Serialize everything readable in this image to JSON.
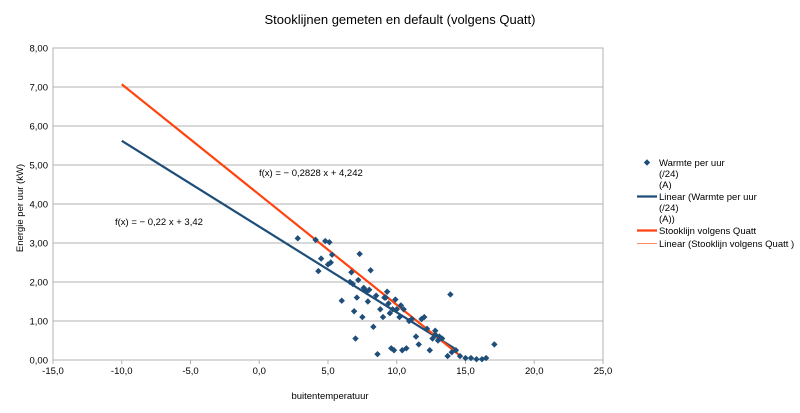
{
  "chart_data": {
    "type": "scatter",
    "title": "Stooklijnen gemeten en default (volgens Quatt)",
    "xlabel": "buitentemperatuur",
    "ylabel": "Energie per uur (kW)",
    "xlim": [
      -15,
      25
    ],
    "ylim": [
      0,
      8
    ],
    "xticks": [
      "-15,0",
      "-10,0",
      "-5,0",
      "0,0",
      "5,0",
      "10,0",
      "15,0",
      "20,0",
      "25,0"
    ],
    "yticks": [
      "0,00",
      "1,00",
      "2,00",
      "3,00",
      "4,00",
      "5,00",
      "6,00",
      "7,00",
      "8,00"
    ],
    "grid": true,
    "legend_position": "right",
    "legend": [
      "Warmte per uur\n(/24)\n(A)",
      "Linear (Warmte per uur\n(/24)\n(A))",
      "Stooklijn volgens Quatt",
      "Linear (Stooklijn volgens Quatt )"
    ],
    "equations": [
      {
        "text": "f(x) = − 0,2828 x + 4,242"
      },
      {
        "text": "f(x) = − 0,22 x + 3,42"
      }
    ],
    "series": [
      {
        "name": "Warmte per uur (/24) (A)",
        "kind": "scatter",
        "color": "#1f4e79",
        "points": [
          [
            2.8,
            3.12
          ],
          [
            4.1,
            3.08
          ],
          [
            4.3,
            2.28
          ],
          [
            4.5,
            2.6
          ],
          [
            4.8,
            3.05
          ],
          [
            5.0,
            2.45
          ],
          [
            5.1,
            3.02
          ],
          [
            5.3,
            2.7
          ],
          [
            5.2,
            2.5
          ],
          [
            6.0,
            1.52
          ],
          [
            6.6,
            2.0
          ],
          [
            6.7,
            2.25
          ],
          [
            6.8,
            1.95
          ],
          [
            6.9,
            1.25
          ],
          [
            7.0,
            0.55
          ],
          [
            7.1,
            1.6
          ],
          [
            7.2,
            2.05
          ],
          [
            7.3,
            2.72
          ],
          [
            7.5,
            1.1
          ],
          [
            7.6,
            1.85
          ],
          [
            7.8,
            1.75
          ],
          [
            7.9,
            1.5
          ],
          [
            8.0,
            1.8
          ],
          [
            8.1,
            2.3
          ],
          [
            8.3,
            0.85
          ],
          [
            8.5,
            1.65
          ],
          [
            8.6,
            0.15
          ],
          [
            8.8,
            1.3
          ],
          [
            9.0,
            1.1
          ],
          [
            9.1,
            1.6
          ],
          [
            9.3,
            1.75
          ],
          [
            9.4,
            1.45
          ],
          [
            9.5,
            1.2
          ],
          [
            9.6,
            0.3
          ],
          [
            9.7,
            1.3
          ],
          [
            9.8,
            0.25
          ],
          [
            9.9,
            1.55
          ],
          [
            10.0,
            1.3
          ],
          [
            10.2,
            1.1
          ],
          [
            10.4,
            0.25
          ],
          [
            10.5,
            1.3
          ],
          [
            10.7,
            0.3
          ],
          [
            10.9,
            1.0
          ],
          [
            11.1,
            1.05
          ],
          [
            11.4,
            0.6
          ],
          [
            11.6,
            0.4
          ],
          [
            11.8,
            1.05
          ],
          [
            12.0,
            1.1
          ],
          [
            12.2,
            0.8
          ],
          [
            12.4,
            0.25
          ],
          [
            12.6,
            0.55
          ],
          [
            12.8,
            0.65
          ],
          [
            13.0,
            0.5
          ],
          [
            13.1,
            0.6
          ],
          [
            13.3,
            0.55
          ],
          [
            13.7,
            0.1
          ],
          [
            13.9,
            1.68
          ],
          [
            14.0,
            0.2
          ],
          [
            14.3,
            0.25
          ],
          [
            14.6,
            0.1
          ],
          [
            15.0,
            0.05
          ],
          [
            15.4,
            0.05
          ],
          [
            15.8,
            0.02
          ],
          [
            16.2,
            0.02
          ],
          [
            16.5,
            0.05
          ],
          [
            17.1,
            0.4
          ],
          [
            12.8,
            0.75
          ],
          [
            10.3,
            1.4
          ],
          [
            9.2,
            1.6
          ],
          [
            7.7,
            1.8
          ]
        ]
      },
      {
        "name": "Linear (Warmte per uur (/24) (A))",
        "kind": "line",
        "color": "#1f4e79",
        "x": [
          -10,
          14.2
        ],
        "slope": -0.22,
        "intercept": 3.42
      },
      {
        "name": "Stooklijn volgens Quatt",
        "kind": "line",
        "color": "#ff420e",
        "x": [
          -10,
          14.7
        ],
        "slope": -0.2828,
        "intercept": 4.242
      },
      {
        "name": "Linear (Stooklijn volgens Quatt )",
        "kind": "line",
        "color": "#ff8a5c",
        "x": [
          -10,
          14.7
        ],
        "slope": -0.2828,
        "intercept": 4.242
      }
    ]
  }
}
